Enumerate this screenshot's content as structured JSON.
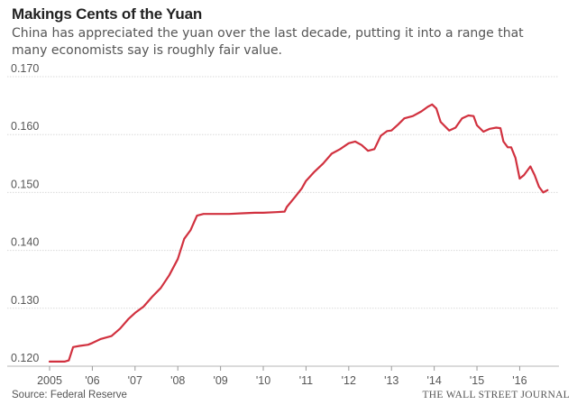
{
  "chart_data": {
    "type": "line",
    "title": "Makings Cents of the Yuan",
    "subtitle": "China has appreciated the yuan over the last decade, putting it into a range that many economists say is roughly fair value.",
    "xlabel": "",
    "ylabel": "",
    "xlim": [
      2005.0,
      2016.75
    ],
    "ylim": [
      0.12,
      0.17
    ],
    "y_ticks": [
      0.12,
      0.13,
      0.14,
      0.15,
      0.16,
      0.17
    ],
    "y_tick_labels": [
      "0.120",
      "0.130",
      "0.140",
      "0.150",
      "0.160",
      "0.170"
    ],
    "x_ticks": [
      2005,
      2006,
      2007,
      2008,
      2009,
      2010,
      2011,
      2012,
      2013,
      2014,
      2015,
      2016
    ],
    "x_tick_labels": [
      "2005",
      "'06",
      "'07",
      "'08",
      "'09",
      "'10",
      "'11",
      "'12",
      "'13",
      "'14",
      "'15",
      "'16"
    ],
    "grid": true,
    "legend": "none",
    "line_color": "#d1313f",
    "series": [
      {
        "values": [
          [
            2005.0,
            0.1208
          ],
          [
            2005.35,
            0.1208
          ],
          [
            2005.45,
            0.121
          ],
          [
            2005.55,
            0.1233
          ],
          [
            2005.7,
            0.1235
          ],
          [
            2005.9,
            0.1237
          ],
          [
            2006.0,
            0.124
          ],
          [
            2006.2,
            0.1247
          ],
          [
            2006.45,
            0.1252
          ],
          [
            2006.65,
            0.1265
          ],
          [
            2006.85,
            0.1282
          ],
          [
            2007.0,
            0.1292
          ],
          [
            2007.2,
            0.1303
          ],
          [
            2007.4,
            0.132
          ],
          [
            2007.6,
            0.1335
          ],
          [
            2007.8,
            0.1357
          ],
          [
            2008.0,
            0.1385
          ],
          [
            2008.15,
            0.142
          ],
          [
            2008.3,
            0.1435
          ],
          [
            2008.45,
            0.146
          ],
          [
            2008.6,
            0.1463
          ],
          [
            2008.8,
            0.1463
          ],
          [
            2009.0,
            0.1463
          ],
          [
            2009.2,
            0.1463
          ],
          [
            2009.5,
            0.1464
          ],
          [
            2009.8,
            0.1465
          ],
          [
            2010.0,
            0.1465
          ],
          [
            2010.3,
            0.1466
          ],
          [
            2010.5,
            0.1467
          ],
          [
            2010.55,
            0.1475
          ],
          [
            2010.75,
            0.1493
          ],
          [
            2010.9,
            0.1507
          ],
          [
            2011.0,
            0.152
          ],
          [
            2011.2,
            0.1536
          ],
          [
            2011.4,
            0.155
          ],
          [
            2011.6,
            0.1567
          ],
          [
            2011.8,
            0.1575
          ],
          [
            2012.0,
            0.1585
          ],
          [
            2012.15,
            0.1588
          ],
          [
            2012.3,
            0.1582
          ],
          [
            2012.45,
            0.1572
          ],
          [
            2012.6,
            0.1575
          ],
          [
            2012.75,
            0.1598
          ],
          [
            2012.9,
            0.1606
          ],
          [
            2013.0,
            0.1607
          ],
          [
            2013.15,
            0.1617
          ],
          [
            2013.3,
            0.1628
          ],
          [
            2013.5,
            0.1632
          ],
          [
            2013.7,
            0.164
          ],
          [
            2013.85,
            0.1648
          ],
          [
            2013.95,
            0.1652
          ],
          [
            2014.05,
            0.1645
          ],
          [
            2014.15,
            0.1622
          ],
          [
            2014.35,
            0.1607
          ],
          [
            2014.5,
            0.1612
          ],
          [
            2014.65,
            0.1628
          ],
          [
            2014.8,
            0.1633
          ],
          [
            2014.92,
            0.1632
          ],
          [
            2015.0,
            0.1616
          ],
          [
            2015.15,
            0.1605
          ],
          [
            2015.3,
            0.161
          ],
          [
            2015.45,
            0.1612
          ],
          [
            2015.55,
            0.1611
          ],
          [
            2015.62,
            0.1588
          ],
          [
            2015.72,
            0.1578
          ],
          [
            2015.8,
            0.1578
          ],
          [
            2015.9,
            0.156
          ],
          [
            2016.0,
            0.1524
          ],
          [
            2016.1,
            0.153
          ],
          [
            2016.25,
            0.1545
          ],
          [
            2016.35,
            0.153
          ],
          [
            2016.45,
            0.151
          ],
          [
            2016.55,
            0.15
          ],
          [
            2016.65,
            0.1504
          ]
        ]
      }
    ]
  },
  "footer": {
    "source": "Source: Federal Reserve",
    "brand": "THE WALL STREET JOURNAL"
  }
}
